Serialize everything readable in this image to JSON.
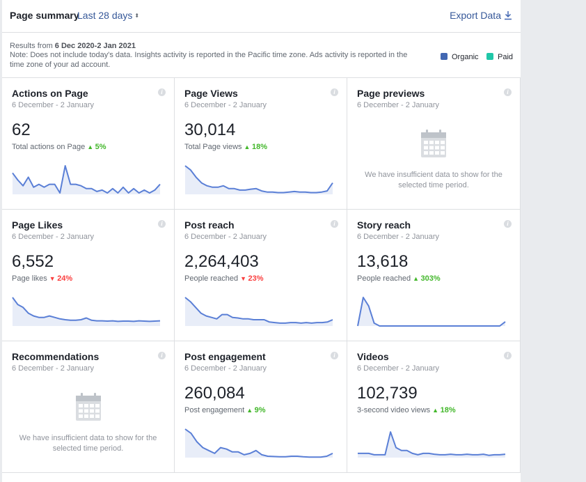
{
  "header": {
    "title": "Page summary",
    "range_label": "Last 28 days",
    "range_arrows": "⬍",
    "export_label": "Export Data"
  },
  "note": {
    "results_prefix": "Results from ",
    "results_range": "6 Dec 2020-2 Jan 2021",
    "text": "Note: Does not include today's data. Insights activity is reported in the Pacific time zone. Ads activity is reported in the time zone of your ad account."
  },
  "legend": [
    {
      "label": "Organic",
      "color": "#4267b2"
    },
    {
      "label": "Paid",
      "color": "#20c7a8"
    }
  ],
  "colors": {
    "line": "#5a7fd6",
    "fill": "#e8edf8",
    "up": "#42b72a",
    "down": "#fa3e3e"
  },
  "cards": [
    {
      "title": "Actions on Page",
      "date": "6 December - 2 January",
      "value": "62",
      "sub": "Total actions on Page",
      "change": "5%",
      "direction": "up",
      "spark": [
        0.75,
        0.5,
        0.3,
        0.6,
        0.25,
        0.35,
        0.25,
        0.35,
        0.35,
        0.05,
        1.0,
        0.35,
        0.35,
        0.3,
        0.2,
        0.2,
        0.1,
        0.15,
        0.05,
        0.2,
        0.05,
        0.25,
        0.05,
        0.2,
        0.05,
        0.15,
        0.05,
        0.15,
        0.35
      ]
    },
    {
      "title": "Page Views",
      "date": "6 December - 2 January",
      "value": "30,014",
      "sub": "Total Page views",
      "change": "18%",
      "direction": "up",
      "spark": [
        1.0,
        0.85,
        0.6,
        0.4,
        0.3,
        0.25,
        0.25,
        0.3,
        0.2,
        0.2,
        0.15,
        0.15,
        0.18,
        0.2,
        0.12,
        0.08,
        0.08,
        0.06,
        0.06,
        0.08,
        0.1,
        0.08,
        0.08,
        0.06,
        0.06,
        0.08,
        0.12,
        0.4
      ]
    },
    {
      "title": "Page previews",
      "date": "6 December - 2 January",
      "empty": true,
      "empty_msg": "We have insufficient data to show for the selected time period."
    },
    {
      "title": "Page Likes",
      "date": "6 December - 2 January",
      "value": "6,552",
      "sub": "Page likes",
      "change": "24%",
      "direction": "down",
      "spark": [
        1.0,
        0.75,
        0.65,
        0.45,
        0.35,
        0.3,
        0.3,
        0.35,
        0.3,
        0.25,
        0.22,
        0.2,
        0.2,
        0.22,
        0.28,
        0.2,
        0.18,
        0.18,
        0.17,
        0.18,
        0.16,
        0.17,
        0.17,
        0.16,
        0.18,
        0.17,
        0.16,
        0.17,
        0.18
      ]
    },
    {
      "title": "Post reach",
      "date": "6 December - 2 January",
      "value": "2,264,403",
      "sub": "People reached",
      "change": "23%",
      "direction": "down",
      "spark": [
        1.0,
        0.85,
        0.65,
        0.45,
        0.35,
        0.3,
        0.25,
        0.4,
        0.4,
        0.3,
        0.28,
        0.25,
        0.25,
        0.22,
        0.22,
        0.22,
        0.14,
        0.12,
        0.1,
        0.1,
        0.12,
        0.12,
        0.1,
        0.12,
        0.1,
        0.12,
        0.12,
        0.14,
        0.22
      ]
    },
    {
      "title": "Story reach",
      "date": "6 December - 2 January",
      "value": "13,618",
      "sub": "People reached",
      "change": "303%",
      "direction": "up",
      "spark": [
        0.0,
        1.0,
        0.7,
        0.1,
        0.0,
        0.0,
        0.0,
        0.0,
        0.0,
        0.0,
        0.0,
        0.0,
        0.0,
        0.0,
        0.0,
        0.0,
        0.0,
        0.0,
        0.0,
        0.0,
        0.0,
        0.0,
        0.0,
        0.0,
        0.0,
        0.0,
        0.0,
        0.15
      ]
    },
    {
      "title": "Recommendations",
      "date": "6 December - 2 January",
      "empty": true,
      "empty_msg": "We have insufficient data to show for the selected time period."
    },
    {
      "title": "Post engagement",
      "date": "6 December - 2 January",
      "value": "260,084",
      "sub": "Post engagement",
      "change": "9%",
      "direction": "up",
      "spark": [
        1.0,
        0.85,
        0.55,
        0.35,
        0.25,
        0.15,
        0.35,
        0.3,
        0.2,
        0.2,
        0.1,
        0.15,
        0.25,
        0.1,
        0.05,
        0.04,
        0.03,
        0.03,
        0.05,
        0.05,
        0.03,
        0.02,
        0.02,
        0.02,
        0.05,
        0.15
      ]
    },
    {
      "title": "Videos",
      "date": "6 December - 2 January",
      "value": "102,739",
      "sub": "3-second video views",
      "change": "18%",
      "direction": "up",
      "spark": [
        0.15,
        0.15,
        0.15,
        0.1,
        0.1,
        0.1,
        0.9,
        0.35,
        0.25,
        0.25,
        0.15,
        0.1,
        0.15,
        0.15,
        0.12,
        0.1,
        0.1,
        0.12,
        0.1,
        0.1,
        0.12,
        0.1,
        0.1,
        0.12,
        0.08,
        0.1,
        0.1,
        0.12
      ]
    }
  ]
}
